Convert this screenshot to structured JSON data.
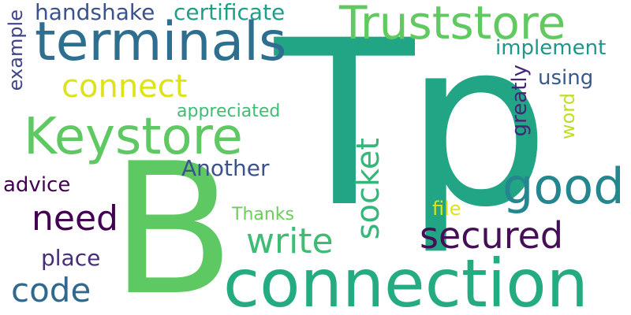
{
  "words": {
    "tp": {
      "text": "Tp",
      "color": "#21a585"
    },
    "b": {
      "text": "B",
      "color": "#5ec962"
    },
    "connection": {
      "text": "connection",
      "color": "#25ab82"
    },
    "truststore": {
      "text": "Truststore",
      "color": "#60ca60"
    },
    "terminals": {
      "text": "terminals",
      "color": "#2e6e8e"
    },
    "keystore": {
      "text": "Keystore",
      "color": "#5ec962"
    },
    "good": {
      "text": "good",
      "color": "#24868e"
    },
    "secured": {
      "text": "secured",
      "color": "#440f55"
    },
    "write": {
      "text": "write",
      "color": "#3fbc73"
    },
    "need": {
      "text": "need",
      "color": "#440154"
    },
    "code": {
      "text": "code",
      "color": "#31688e"
    },
    "connect": {
      "text": "connect",
      "color": "#dde318"
    },
    "socket": {
      "text": "socket",
      "color": "#35b779"
    },
    "handshake": {
      "text": "handshake",
      "color": "#3b528b"
    },
    "certificate": {
      "text": "certificate",
      "color": "#1f9e89"
    },
    "implement": {
      "text": "implement",
      "color": "#1f958b"
    },
    "using": {
      "text": "using",
      "color": "#38598c"
    },
    "appreciated": {
      "text": "appreciated",
      "color": "#3fbc73"
    },
    "another": {
      "text": "Another",
      "color": "#3b528b"
    },
    "advice": {
      "text": "advice",
      "color": "#440154"
    },
    "place": {
      "text": "place",
      "color": "#472c7a"
    },
    "thanks": {
      "text": "Thanks",
      "color": "#6ccd5a"
    },
    "file": {
      "text": "file",
      "color": "#dde318"
    },
    "example": {
      "text": "example",
      "color": "#414487"
    },
    "greatly": {
      "text": "greatly",
      "color": "#482475"
    },
    "word": {
      "text": "word",
      "color": "#bddf26"
    }
  }
}
